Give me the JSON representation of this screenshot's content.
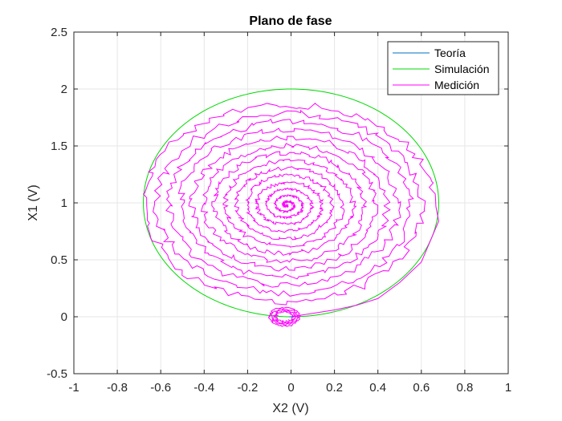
{
  "chart_data": {
    "type": "line",
    "title": "Plano de fase",
    "xlabel": "X2 (V)",
    "ylabel": "X1 (V)",
    "xlim": [
      -1,
      1
    ],
    "ylim": [
      -0.5,
      2.5
    ],
    "xticks": [
      -1,
      -0.8,
      -0.6,
      -0.4,
      -0.2,
      0,
      0.2,
      0.4,
      0.6,
      0.8,
      1
    ],
    "xtick_labels": [
      "-1",
      "-0.8",
      "-0.6",
      "-0.4",
      "-0.2",
      "0",
      "0.2",
      "0.4",
      "0.6",
      "0.8",
      "1"
    ],
    "yticks": [
      -0.5,
      0,
      0.5,
      1,
      1.5,
      2,
      2.5
    ],
    "ytick_labels": [
      "-0.5",
      "0",
      "0.5",
      "1",
      "1.5",
      "2",
      "2.5"
    ],
    "grid": true,
    "legend_position": "top-right",
    "series": [
      {
        "name": "Teoría",
        "color": "#0072BD",
        "description_points": [
          [
            0,
            0
          ],
          [
            0,
            0
          ]
        ]
      },
      {
        "name": "Simulación",
        "color": "#00D800",
        "ellipse": {
          "center": [
            0,
            1
          ],
          "semi_x": 0.68,
          "semi_y": 1.0
        }
      },
      {
        "name": "Medición",
        "color": "#FF00FF",
        "spiral": {
          "center": [
            -0.02,
            0.98
          ],
          "start_semi_x": 0.68,
          "start_semi_y": 0.9,
          "end_radius": 0.0,
          "turns": 14
        },
        "approach_points": [
          [
            0.0,
            0.0
          ],
          [
            0.1,
            0.03
          ],
          [
            0.2,
            0.06
          ],
          [
            0.3,
            0.1
          ],
          [
            0.4,
            0.16
          ],
          [
            0.5,
            0.3
          ],
          [
            0.6,
            0.48
          ],
          [
            0.68,
            0.84
          ]
        ],
        "small_loop": {
          "center": [
            -0.03,
            0.0
          ],
          "semi_x": 0.07,
          "semi_y": 0.08
        }
      }
    ]
  }
}
